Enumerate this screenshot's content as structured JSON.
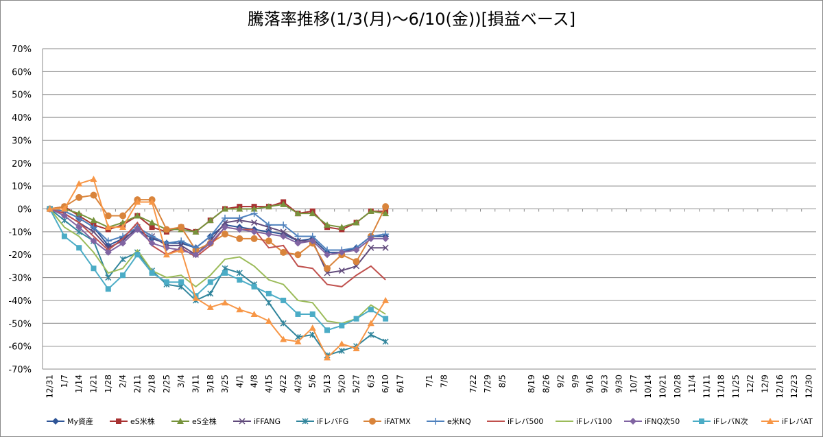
{
  "chart_data": {
    "type": "line",
    "title": "騰落率推移(1/3(月)～6/10(金))[損益ベース]",
    "categories": [
      "12/31",
      "1/7",
      "1/14",
      "1/21",
      "1/28",
      "2/4",
      "2/11",
      "2/18",
      "2/25",
      "3/4",
      "3/11",
      "3/18",
      "3/25",
      "4/1",
      "4/8",
      "4/15",
      "4/22",
      "4/29",
      "5/6",
      "5/13",
      "5/20",
      "5/27",
      "6/3",
      "6/10",
      "6/17",
      null,
      "7/1",
      "7/8",
      null,
      "7/22",
      "7/29",
      "8/5",
      null,
      "8/19",
      "8/26",
      "9/2",
      "9/9",
      "9/16",
      "9/23",
      "9/30",
      "10/7",
      "10/14",
      "10/21",
      "10/28",
      "11/4",
      "11/11",
      "11/18",
      "11/25",
      "12/2",
      "12/9",
      "12/16",
      "12/23",
      "12/30"
    ],
    "ylim": [
      -70,
      70
    ],
    "yticks": [
      {
        "value": -70,
        "label": "-70%"
      },
      {
        "value": -60,
        "label": "-60%"
      },
      {
        "value": -50,
        "label": "-50%"
      },
      {
        "value": -40,
        "label": "-40%"
      },
      {
        "value": -30,
        "label": "-30%"
      },
      {
        "value": -20,
        "label": "-20%"
      },
      {
        "value": -10,
        "label": "-10%"
      },
      {
        "value": 0,
        "label": "0%"
      },
      {
        "value": 10,
        "label": "10%"
      },
      {
        "value": 20,
        "label": "20%"
      },
      {
        "value": 30,
        "label": "30%"
      },
      {
        "value": 40,
        "label": "40%"
      },
      {
        "value": 50,
        "label": "50%"
      },
      {
        "value": 60,
        "label": "60%"
      },
      {
        "value": 70,
        "label": "70%"
      }
    ],
    "grid": true,
    "legend": "bottom",
    "series": [
      {
        "name": "My資産",
        "color": "#2f5597",
        "marker": "diamond",
        "values": [
          0,
          -1,
          -4,
          -8,
          -16,
          -13,
          -9,
          -13,
          -15,
          -15,
          -17,
          -12,
          -7,
          -8,
          -9,
          -10,
          -11,
          -14,
          -13,
          -19,
          -19,
          -17,
          -12,
          -12,
          null,
          null,
          null,
          null,
          null,
          null,
          null,
          null,
          null,
          null,
          null,
          null,
          null,
          null,
          null,
          null,
          null,
          null,
          null,
          null,
          null,
          null,
          null,
          null,
          null,
          null,
          null,
          null,
          null
        ]
      },
      {
        "name": "eS米株",
        "color": "#a83232",
        "marker": "square",
        "values": [
          0,
          1,
          -3,
          -7,
          -9,
          -7,
          -3,
          -8,
          -10,
          -8,
          -10,
          -5,
          0,
          1,
          1,
          1,
          3,
          -2,
          -1,
          -8,
          -9,
          -6,
          -1,
          -1,
          null,
          null,
          null,
          null,
          null,
          null,
          null,
          null,
          null,
          null,
          null,
          null,
          null,
          null,
          null,
          null,
          null,
          null,
          null,
          null,
          null,
          null,
          null,
          null,
          null,
          null,
          null,
          null,
          null
        ]
      },
      {
        "name": "eS全株",
        "color": "#77933c",
        "marker": "triangle",
        "values": [
          0,
          0,
          -2,
          -5,
          -8,
          -6,
          -3,
          -6,
          -9,
          -9,
          -10,
          -5,
          0,
          0,
          0,
          1,
          2,
          -2,
          -2,
          -7,
          -8,
          -6,
          -1,
          -2,
          null,
          null,
          null,
          null,
          null,
          null,
          null,
          null,
          null,
          null,
          null,
          null,
          null,
          null,
          null,
          null,
          null,
          null,
          null,
          null,
          null,
          null,
          null,
          null,
          null,
          null,
          null,
          null,
          null
        ]
      },
      {
        "name": "iFFANG",
        "color": "#604a7b",
        "marker": "x",
        "values": [
          0,
          -2,
          -6,
          -10,
          -17,
          -14,
          -8,
          -12,
          -16,
          -16,
          -20,
          -14,
          -6,
          -5,
          -6,
          -8,
          -10,
          -14,
          -14,
          -28,
          -27,
          -25,
          -17,
          -17,
          null,
          null,
          null,
          null,
          null,
          null,
          null,
          null,
          null,
          null,
          null,
          null,
          null,
          null,
          null,
          null,
          null,
          null,
          null,
          null,
          null,
          null,
          null,
          null,
          null,
          null,
          null,
          null,
          null
        ]
      },
      {
        "name": "iFレバFG",
        "color": "#31859c",
        "marker": "star",
        "values": [
          0,
          -5,
          -10,
          -14,
          -30,
          -22,
          -19,
          -27,
          -33,
          -34,
          -40,
          -37,
          -26,
          -28,
          -33,
          -41,
          -50,
          -56,
          -55,
          -64,
          -62,
          -60,
          -55,
          -58,
          null,
          null,
          null,
          null,
          null,
          null,
          null,
          null,
          null,
          null,
          null,
          null,
          null,
          null,
          null,
          null,
          null,
          null,
          null,
          null,
          null,
          null,
          null,
          null,
          null,
          null,
          null,
          null,
          null
        ]
      },
      {
        "name": "iFATMX",
        "color": "#d9843b",
        "marker": "circle",
        "values": [
          0,
          1,
          5,
          6,
          -3,
          -3,
          4,
          4,
          -9,
          -8,
          -18,
          -15,
          -11,
          -13,
          -13,
          -14,
          -19,
          -20,
          -15,
          -26,
          -20,
          -23,
          -12,
          1,
          null,
          null,
          null,
          null,
          null,
          null,
          null,
          null,
          null,
          null,
          null,
          null,
          null,
          null,
          null,
          null,
          null,
          null,
          null,
          null,
          null,
          null,
          null,
          null,
          null,
          null,
          null,
          null,
          null
        ]
      },
      {
        "name": "e米NQ",
        "color": "#4f81bd",
        "marker": "plus",
        "values": [
          0,
          -1,
          -4,
          -8,
          -14,
          -12,
          -8,
          -12,
          -15,
          -14,
          -17,
          -12,
          -4,
          -4,
          -2,
          -7,
          -7,
          -12,
          -12,
          -18,
          -18,
          -17,
          -12,
          -11,
          null,
          null,
          null,
          null,
          null,
          null,
          null,
          null,
          null,
          null,
          null,
          null,
          null,
          null,
          null,
          null,
          null,
          null,
          null,
          null,
          null,
          null,
          null,
          null,
          null,
          null,
          null,
          null,
          null
        ]
      },
      {
        "name": "iFレバ500",
        "color": "#c0504d",
        "marker": "none",
        "values": [
          0,
          -2,
          -6,
          -12,
          -18,
          -13,
          -6,
          -16,
          -20,
          -17,
          -21,
          -16,
          -8,
          -9,
          -9,
          -17,
          -16,
          -25,
          -26,
          -33,
          -34,
          -29,
          -25,
          -31,
          null,
          null,
          null,
          null,
          null,
          null,
          null,
          null,
          null,
          null,
          null,
          null,
          null,
          null,
          null,
          null,
          null,
          null,
          null,
          null,
          null,
          null,
          null,
          null,
          null,
          null,
          null,
          null,
          null
        ]
      },
      {
        "name": "iFレバ100",
        "color": "#9bbb59",
        "marker": "none",
        "values": [
          0,
          -8,
          -12,
          -19,
          -28,
          -26,
          -18,
          -27,
          -30,
          -29,
          -34,
          -29,
          -22,
          -21,
          -25,
          -31,
          -33,
          -40,
          -41,
          -49,
          -50,
          -48,
          -42,
          -46,
          null,
          null,
          null,
          null,
          null,
          null,
          null,
          null,
          null,
          null,
          null,
          null,
          null,
          null,
          null,
          null,
          null,
          null,
          null,
          null,
          null,
          null,
          null,
          null,
          null,
          null,
          null,
          null,
          null
        ]
      },
      {
        "name": "iFNQ次50",
        "color": "#8064a2",
        "marker": "diamond",
        "values": [
          0,
          -3,
          -8,
          -14,
          -19,
          -15,
          -9,
          -15,
          -17,
          -18,
          -20,
          -15,
          -8,
          -9,
          -10,
          -11,
          -12,
          -15,
          -14,
          -20,
          -19,
          -18,
          -13,
          -13,
          null,
          null,
          null,
          null,
          null,
          null,
          null,
          null,
          null,
          null,
          null,
          null,
          null,
          null,
          null,
          null,
          null,
          null,
          null,
          null,
          null,
          null,
          null,
          null,
          null,
          null,
          null,
          null,
          null
        ]
      },
      {
        "name": "iFレバN次",
        "color": "#4bacc6",
        "marker": "square",
        "values": [
          0,
          -12,
          -17,
          -26,
          -35,
          -29,
          -20,
          -28,
          -32,
          -32,
          -38,
          -32,
          -28,
          -31,
          -34,
          -37,
          -40,
          -46,
          -46,
          -53,
          -51,
          -48,
          -44,
          -48,
          null,
          null,
          null,
          null,
          null,
          null,
          null,
          null,
          null,
          null,
          null,
          null,
          null,
          null,
          null,
          null,
          null,
          null,
          null,
          null,
          null,
          null,
          null,
          null,
          null,
          null,
          null,
          null,
          null
        ]
      },
      {
        "name": "iFレバAT",
        "color": "#f79646",
        "marker": "triangle",
        "values": [
          0,
          0,
          11,
          13,
          -8,
          -8,
          3,
          3,
          -20,
          -18,
          -39,
          -43,
          -41,
          -44,
          -46,
          -49,
          -57,
          -58,
          -52,
          -65,
          -59,
          -61,
          -50,
          -40,
          null,
          null,
          null,
          null,
          null,
          null,
          null,
          null,
          null,
          null,
          null,
          null,
          null,
          null,
          null,
          null,
          null,
          null,
          null,
          null,
          null,
          null,
          null,
          null,
          null,
          null,
          null,
          null,
          null
        ]
      }
    ]
  }
}
